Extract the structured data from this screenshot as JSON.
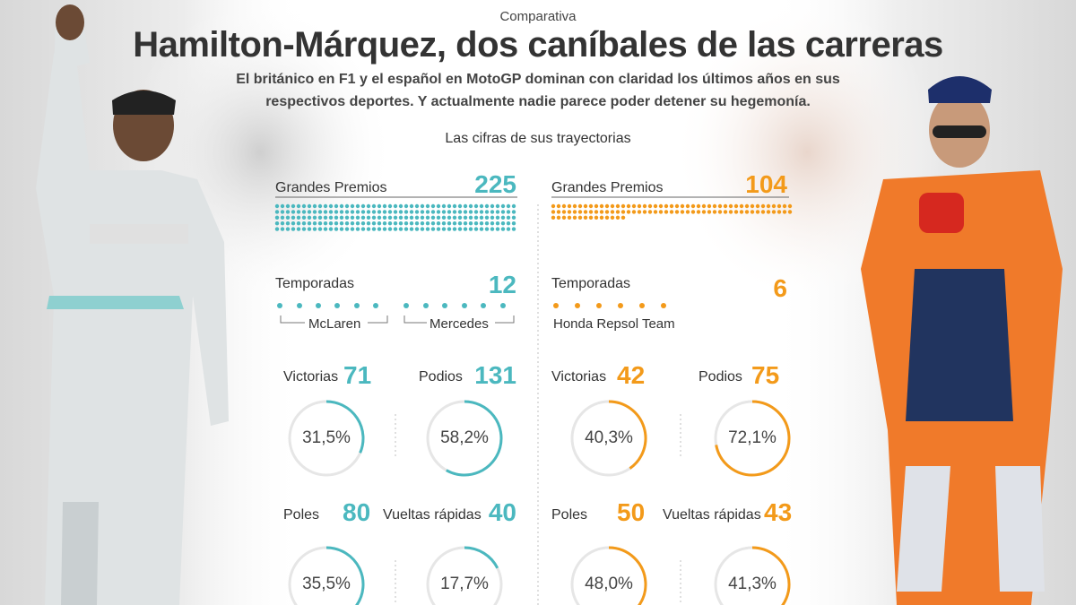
{
  "header": {
    "kicker": "Comparativa",
    "title": "Hamilton-Márquez, dos caníbales de las carreras",
    "subtitle_line1": "El británico en F1 y el español en MotoGP dominan con claridad los últimos años en sus",
    "subtitle_line2": "respectivos deportes. Y actualmente nadie parece poder detener su hegemonía.",
    "section_title": "Las cifras de sus trayectorias"
  },
  "colors": {
    "hamilton": "#4bb8bf",
    "marquez": "#f39a1a",
    "track": "#e6e6e6"
  },
  "chart_data": [
    {
      "type": "dot-count",
      "rider": "Hamilton",
      "stats": {
        "grandes_premios": {
          "label": "Grandes Premios",
          "value": 225
        },
        "temporadas": {
          "label": "Temporadas",
          "value": 12,
          "teams": [
            {
              "name": "McLaren",
              "seasons": 6
            },
            {
              "name": "Mercedes",
              "seasons": 6
            }
          ]
        }
      },
      "rings": [
        {
          "label": "Victorias",
          "value": 71,
          "percent": 31.5,
          "percent_label": "31,5%"
        },
        {
          "label": "Podios",
          "value": 131,
          "percent": 58.2,
          "percent_label": "58,2%"
        },
        {
          "label": "Poles",
          "value": 80,
          "percent": 35.5,
          "percent_label": "35,5%"
        },
        {
          "label": "Vueltas rápidas",
          "value": 40,
          "percent": 17.7,
          "percent_label": "17,7%"
        }
      ]
    },
    {
      "type": "dot-count",
      "rider": "Márquez",
      "stats": {
        "grandes_premios": {
          "label": "Grandes Premios",
          "value": 104
        },
        "temporadas": {
          "label": "Temporadas",
          "value": 6,
          "teams": [
            {
              "name": "Honda Repsol Team",
              "seasons": 6
            }
          ]
        }
      },
      "rings": [
        {
          "label": "Victorias",
          "value": 42,
          "percent": 40.3,
          "percent_label": "40,3%"
        },
        {
          "label": "Podios",
          "value": 75,
          "percent": 72.1,
          "percent_label": "72,1%"
        },
        {
          "label": "Poles",
          "value": 50,
          "percent": 48.0,
          "percent_label": "48,0%"
        },
        {
          "label": "Vueltas rápidas",
          "value": 43,
          "percent": 41.3,
          "percent_label": "41,3%"
        }
      ]
    }
  ]
}
